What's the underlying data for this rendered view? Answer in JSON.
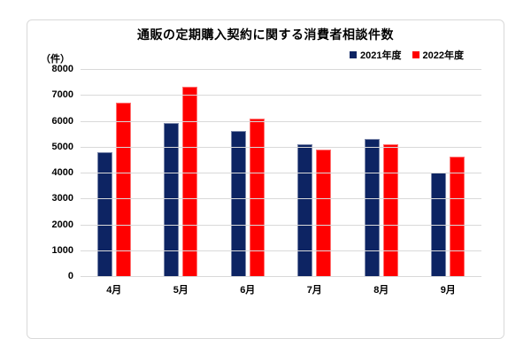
{
  "chart": {
    "frame_border_color": "#d9d9d9",
    "gridline_color": "#d9d9d9",
    "background_color": "#ffffff",
    "text_color": "#000000"
  },
  "chart_data": {
    "type": "bar",
    "title": "通販の定期購入契約に関する消費者相談件数",
    "unit_label": "（件）",
    "categories": [
      "4月",
      "5月",
      "6月",
      "7月",
      "8月",
      "9月"
    ],
    "series": [
      {
        "name": "2021年度",
        "color": "#0d2463",
        "values": [
          4800,
          5900,
          5600,
          5100,
          5300,
          4000
        ]
      },
      {
        "name": "2022年度",
        "color": "#ff0000",
        "values": [
          6700,
          7300,
          6100,
          4900,
          5100,
          4600
        ]
      }
    ],
    "ylim": [
      0,
      8000
    ],
    "ytick_interval": 1000,
    "yticks": [
      "8000",
      "7000",
      "6000",
      "5000",
      "4000",
      "3000",
      "2000",
      "1000",
      "0"
    ],
    "grid": true,
    "legend_position": "top-right",
    "xlabel": "",
    "ylabel": "（件）"
  }
}
